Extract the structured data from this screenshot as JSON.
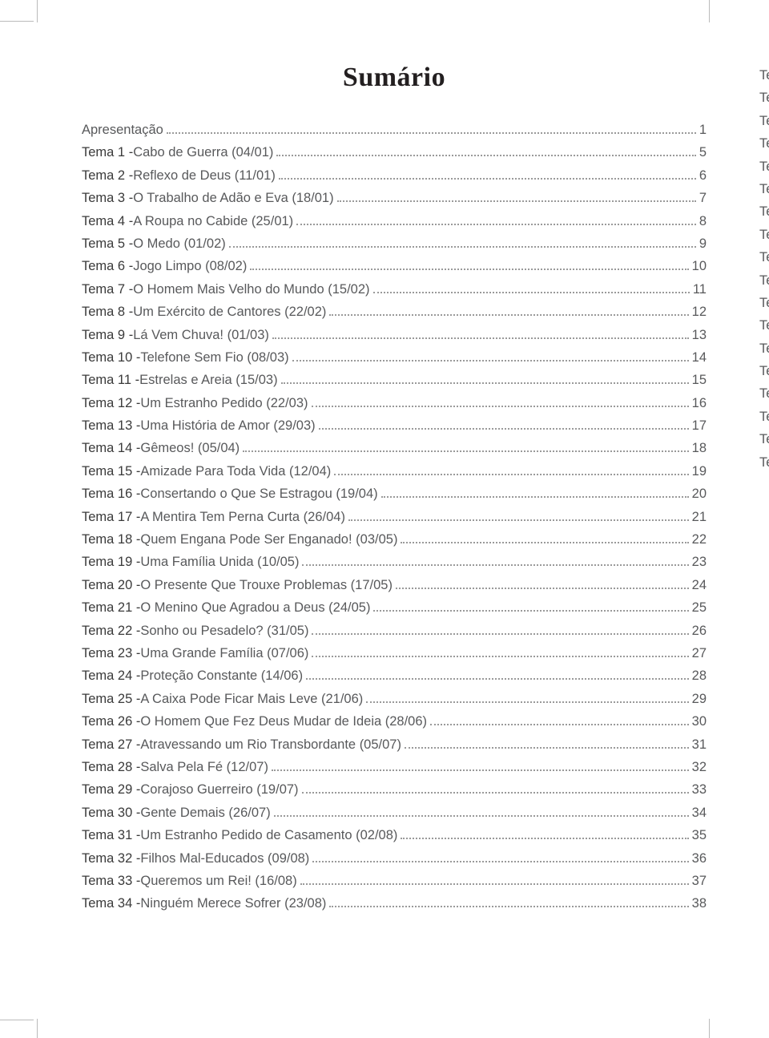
{
  "title": "Sumário",
  "entries": [
    {
      "prefix": "",
      "label": "Apresentação",
      "page": "1"
    },
    {
      "prefix": "Tema 1 - ",
      "label": "Cabo de Guerra (04/01)",
      "page": "5"
    },
    {
      "prefix": "Tema 2 - ",
      "label": "Reflexo de Deus (11/01)",
      "page": "6"
    },
    {
      "prefix": "Tema 3 - ",
      "label": "O Trabalho de Adão e Eva (18/01)",
      "page": "7"
    },
    {
      "prefix": "Tema 4 - ",
      "label": "A Roupa no Cabide (25/01)",
      "page": "8"
    },
    {
      "prefix": "Tema 5 - ",
      "label": "O Medo (01/02)",
      "page": "9"
    },
    {
      "prefix": "Tema 6 - ",
      "label": "Jogo Limpo (08/02)",
      "page": "10"
    },
    {
      "prefix": "Tema 7 - ",
      "label": "O Homem Mais Velho do Mundo (15/02)",
      "page": "11"
    },
    {
      "prefix": "Tema 8 - ",
      "label": "Um Exército de Cantores (22/02)",
      "page": "12"
    },
    {
      "prefix": "Tema 9 - ",
      "label": "Lá Vem Chuva! (01/03)",
      "page": "13"
    },
    {
      "prefix": "Tema 10 - ",
      "label": "Telefone Sem Fio (08/03)",
      "page": "14"
    },
    {
      "prefix": "Tema 11 - ",
      "label": "Estrelas e Areia (15/03)",
      "page": "15"
    },
    {
      "prefix": "Tema 12 - ",
      "label": "Um Estranho Pedido (22/03)",
      "page": "16"
    },
    {
      "prefix": "Tema 13 - ",
      "label": "Uma História de Amor (29/03)",
      "page": "17"
    },
    {
      "prefix": "Tema 14 - ",
      "label": "Gêmeos! (05/04)",
      "page": "18"
    },
    {
      "prefix": "Tema 15 - ",
      "label": "Amizade Para Toda Vida (12/04)",
      "page": "19"
    },
    {
      "prefix": "Tema 16 - ",
      "label": "Consertando o Que Se Estragou (19/04)",
      "page": "20"
    },
    {
      "prefix": "Tema 17 - ",
      "label": "A Mentira Tem Perna Curta (26/04)",
      "page": "21"
    },
    {
      "prefix": "Tema 18 - ",
      "label": "Quem Engana Pode Ser Enganado! (03/05)",
      "page": "22"
    },
    {
      "prefix": "Tema 19 - ",
      "label": "Uma Família Unida (10/05)",
      "page": "23"
    },
    {
      "prefix": "Tema 20 - ",
      "label": "O Presente Que Trouxe Problemas (17/05)",
      "page": "24"
    },
    {
      "prefix": "Tema 21 - ",
      "label": "O Menino Que Agradou a Deus (24/05)",
      "page": "25"
    },
    {
      "prefix": "Tema 22 - ",
      "label": "Sonho ou Pesadelo? (31/05)",
      "page": "26"
    },
    {
      "prefix": "Tema 23 - ",
      "label": "Uma Grande Família (07/06)",
      "page": "27"
    },
    {
      "prefix": "Tema 24 - ",
      "label": "Proteção Constante (14/06)",
      "page": "28"
    },
    {
      "prefix": "Tema 25 - ",
      "label": "A Caixa Pode Ficar Mais Leve (21/06)",
      "page": "29"
    },
    {
      "prefix": "Tema 26 - ",
      "label": "O Homem Que Fez Deus Mudar de Ideia (28/06)",
      "page": "30"
    },
    {
      "prefix": "Tema 27 - ",
      "label": "Atravessando um Rio Transbordante (05/07)",
      "page": "31"
    },
    {
      "prefix": "Tema 28 - ",
      "label": "Salva Pela Fé (12/07)",
      "page": "32"
    },
    {
      "prefix": "Tema 29 - ",
      "label": "Corajoso Guerreiro (19/07)",
      "page": "33"
    },
    {
      "prefix": "Tema 30 - ",
      "label": "Gente Demais (26/07)",
      "page": "34"
    },
    {
      "prefix": "Tema 31 - ",
      "label": "Um Estranho Pedido de Casamento (02/08)",
      "page": "35"
    },
    {
      "prefix": "Tema 32 - ",
      "label": "Filhos Mal-Educados (09/08)",
      "page": "36"
    },
    {
      "prefix": "Tema 33 - ",
      "label": "Queremos um Rei! (16/08)",
      "page": "37"
    },
    {
      "prefix": "Tema 34 - ",
      "label": "Ninguém Merece Sofrer (23/08)",
      "page": "38"
    }
  ],
  "right_fragments": [
    "Te",
    "Te",
    "Te",
    "Te",
    "Te",
    "Te",
    "Te",
    "Te",
    "Te",
    "Te",
    "Te",
    "Te",
    "Te",
    "Te",
    "Te",
    "Te",
    "Te",
    "Te"
  ]
}
